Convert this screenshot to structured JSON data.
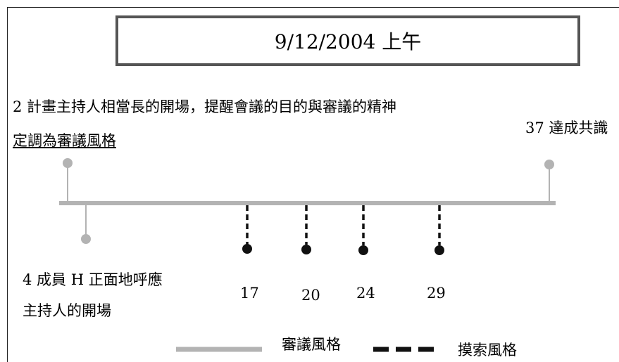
{
  "header": {
    "date": "9/12/2004  上午"
  },
  "notes": {
    "opening_line1": "2  計畫主持人相當長的開場，提醒會議的目的與審議的精神",
    "opening_line2": "定調為審議風格",
    "consensus": "37 達成共識",
    "response_line1": "4  成員 H 正面地呼應",
    "response_line2": "主持人的開場"
  },
  "markers": {
    "m17": "17",
    "m20": "20",
    "m24": "24",
    "m29": "29"
  },
  "legend": {
    "deliberative": "審議風格",
    "exploratory": "摸索風格"
  },
  "colors": {
    "deliberative_line": "#b3b3b3",
    "exploratory_line": "#111111",
    "frame": "#555555"
  }
}
